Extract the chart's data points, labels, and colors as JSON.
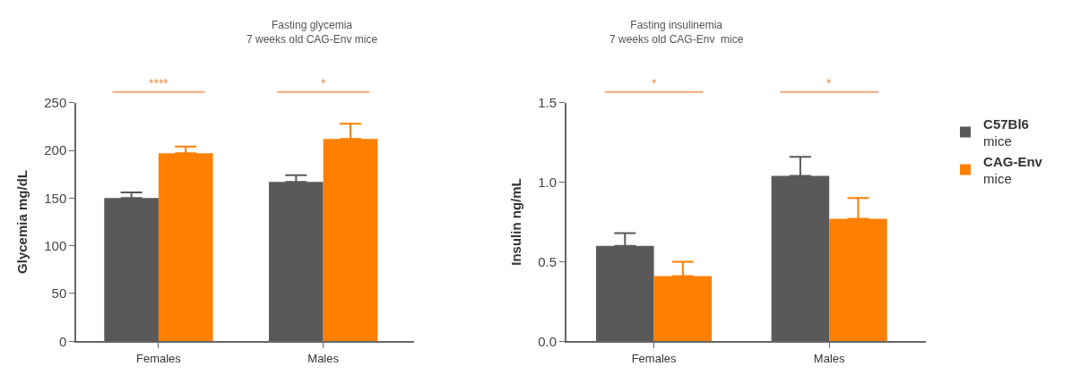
{
  "chart_data": [
    {
      "type": "bar",
      "title": "Fasting glycemia",
      "subtitle": "7 weeks old CAG-Env mice",
      "ylabel": "Glycemia mg/dL",
      "categories": [
        "Females",
        "Males"
      ],
      "series": [
        {
          "color": "#595959",
          "values": [
            150,
            167
          ],
          "errors": [
            [
              150,
              156
            ],
            [
              167,
              174
            ]
          ]
        },
        {
          "color": "#ff7f00",
          "values": [
            197,
            212
          ],
          "errors": [
            [
              197,
              204
            ],
            [
              212,
              228
            ]
          ]
        }
      ],
      "ylim": [
        0,
        250
      ],
      "yticks": [
        0,
        50,
        100,
        150,
        200,
        250
      ],
      "legend": false,
      "annotations": [
        "****",
        "*"
      ]
    },
    {
      "type": "bar",
      "title": "Fasting insulinemia",
      "subtitle": "7 weeks old CAG-Env  mice",
      "ylabel": "Insulin ng/mL",
      "categories": [
        "Females",
        "Males"
      ],
      "series": [
        {
          "name": "C57Bl6 mice",
          "color": "#595959",
          "values": [
            0.6,
            1.04
          ],
          "errors": [
            [
              0.6,
              0.68
            ],
            [
              1.04,
              1.16
            ]
          ]
        },
        {
          "name": "CAG-Env mice",
          "color": "#ff7f00",
          "values": [
            0.41,
            0.77
          ],
          "errors": [
            [
              0.41,
              0.5
            ],
            [
              0.77,
              0.9
            ]
          ]
        }
      ],
      "ylim": [
        0,
        1.5
      ],
      "yticks": [
        {
          "value": 0,
          "label": "0.0"
        },
        {
          "value": 0.5,
          "label": "0.5"
        },
        {
          "value": 1,
          "label": "1.0"
        },
        {
          "value": 1.5,
          "label": "1.5"
        }
      ],
      "legend": "right",
      "annotations": [
        "*",
        "*"
      ]
    }
  ]
}
